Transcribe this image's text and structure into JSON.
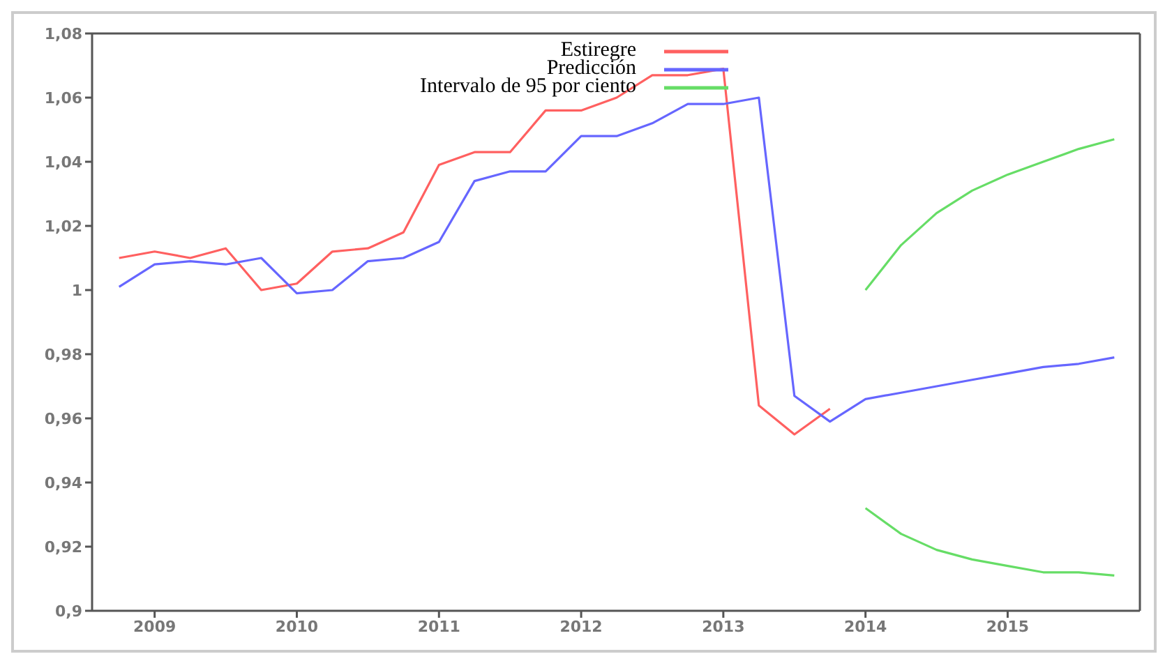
{
  "chart_data": {
    "type": "line",
    "xlim": [
      2008.56,
      2015.93
    ],
    "xticks": [
      2009,
      2010,
      2011,
      2012,
      2013,
      2014,
      2015
    ],
    "ylim": [
      0.9,
      1.08
    ],
    "yticks": [
      {
        "value": 0.9,
        "label": "0,9"
      },
      {
        "value": 0.92,
        "label": "0,92"
      },
      {
        "value": 0.94,
        "label": "0,94"
      },
      {
        "value": 0.96,
        "label": "0,96"
      },
      {
        "value": 0.98,
        "label": "0,98"
      },
      {
        "value": 1,
        "label": "1"
      },
      {
        "value": 1.02,
        "label": "1,02"
      },
      {
        "value": 1.04,
        "label": "1,04"
      },
      {
        "value": 1.06,
        "label": "1,06"
      },
      {
        "value": 1.08,
        "label": "1,08"
      }
    ],
    "grid": false,
    "legend": "top",
    "marker": "none",
    "line_style": "solid",
    "series": [
      {
        "name": "Estiregre",
        "color": "#ff6060",
        "x": [
          2008.75,
          2009,
          2009.25,
          2009.5,
          2009.75,
          2010,
          2010.25,
          2010.5,
          2010.75,
          2011,
          2011.25,
          2011.5,
          2011.75,
          2012,
          2012.25,
          2012.5,
          2012.75,
          2013,
          2013.25,
          2013.5,
          2013.75
        ],
        "values": [
          1.01,
          1.012,
          1.01,
          1.013,
          1.0,
          1.002,
          1.012,
          1.013,
          1.018,
          1.039,
          1.043,
          1.043,
          1.056,
          1.056,
          1.06,
          1.067,
          1.067,
          1.069,
          0.964,
          0.955,
          0.963
        ]
      },
      {
        "name": "Predicción",
        "color": "#6666ff",
        "x": [
          2008.75,
          2009,
          2009.25,
          2009.5,
          2009.75,
          2010,
          2010.25,
          2010.5,
          2010.75,
          2011,
          2011.25,
          2011.5,
          2011.75,
          2012,
          2012.25,
          2012.5,
          2012.75,
          2013,
          2013.25,
          2013.5,
          2013.75,
          2014,
          2014.25,
          2014.5,
          2014.75,
          2015,
          2015.25,
          2015.5,
          2015.75
        ],
        "values": [
          1.001,
          1.008,
          1.009,
          1.008,
          1.01,
          0.999,
          1.0,
          1.009,
          1.01,
          1.015,
          1.034,
          1.037,
          1.037,
          1.048,
          1.048,
          1.052,
          1.058,
          1.058,
          1.06,
          0.967,
          0.959,
          0.966,
          0.968,
          0.97,
          0.972,
          0.974,
          0.976,
          0.977,
          0.979
        ]
      },
      {
        "name": "Intervalo de 95 por ciento",
        "color": "#66dd66",
        "x": [
          2014,
          2014.25,
          2014.5,
          2014.75,
          2015,
          2015.25,
          2015.5,
          2015.75
        ],
        "values": [
          1.0,
          1.014,
          1.024,
          1.031,
          1.036,
          1.04,
          1.044,
          1.047
        ]
      },
      {
        "color": "#66dd66",
        "x": [
          2014,
          2014.25,
          2014.5,
          2014.75,
          2015,
          2015.25,
          2015.5,
          2015.75
        ],
        "values": [
          0.932,
          0.924,
          0.919,
          0.916,
          0.914,
          0.912,
          0.912,
          0.911
        ]
      }
    ]
  }
}
